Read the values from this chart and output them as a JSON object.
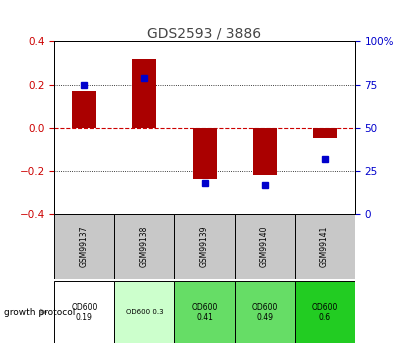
{
  "title": "GDS2593 / 3886",
  "samples": [
    "GSM99137",
    "GSM99138",
    "GSM99139",
    "GSM99140",
    "GSM99141"
  ],
  "log2_ratio": [
    0.17,
    0.32,
    -0.24,
    -0.22,
    -0.05
  ],
  "percentile_rank": [
    0.75,
    0.79,
    0.18,
    0.17,
    0.32
  ],
  "ylim": [
    -0.4,
    0.4
  ],
  "yticks_left": [
    -0.4,
    -0.2,
    0.0,
    0.2,
    0.4
  ],
  "growth_protocol_labels": [
    "OD600\n0.19",
    "OD600 0.3",
    "OD600\n0.41",
    "OD600\n0.49",
    "OD600\n0.6"
  ],
  "growth_protocol_colors": [
    "#ffffff",
    "#ccffcc",
    "#66dd66",
    "#66dd66",
    "#22cc22"
  ],
  "bar_color": "#aa0000",
  "dot_color": "#0000cc",
  "bar_width": 0.4,
  "sample_bg_color": "#c8c8c8",
  "zero_line_color": "#cc0000",
  "title_color": "#444444",
  "left_label_color": "#cc0000",
  "right_label_color": "#0000cc",
  "legend_bar_color": "#cc2200",
  "legend_dot_color": "#0000cc"
}
